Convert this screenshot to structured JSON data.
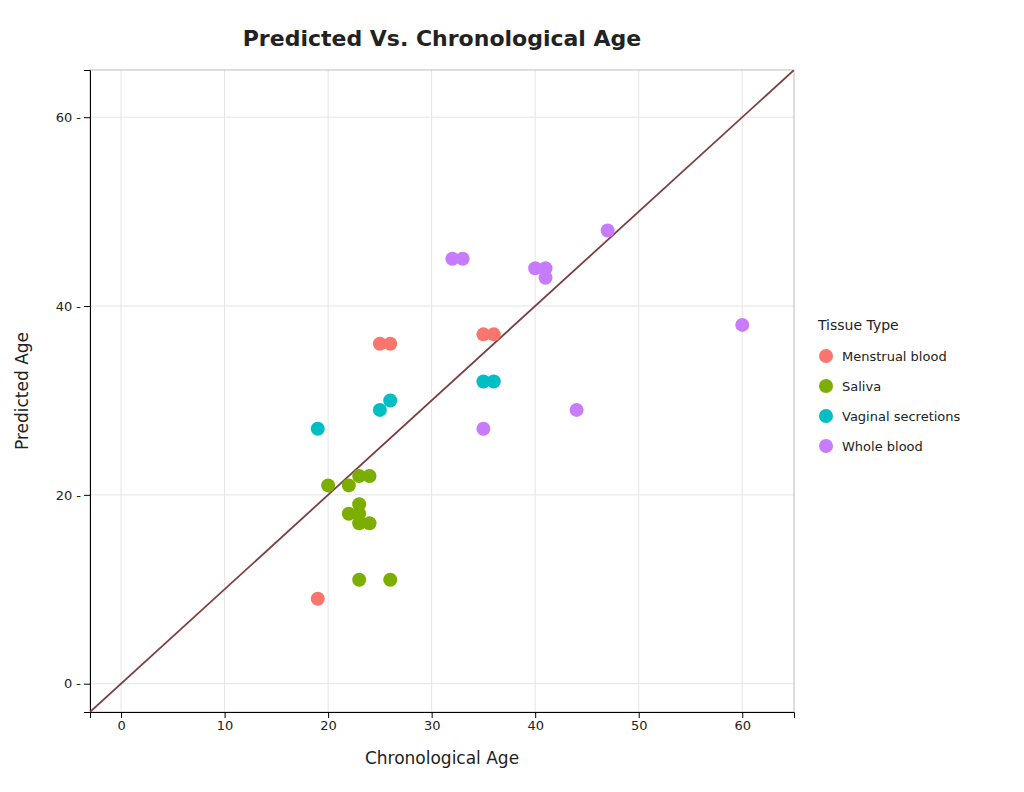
{
  "chart_data": {
    "type": "scatter",
    "title": "Predicted Vs. Chronological Age",
    "xlabel": "Chronological Age",
    "ylabel": "Predicted Age",
    "xlim": [
      -3,
      65
    ],
    "ylim": [
      -3,
      65
    ],
    "xticks": [
      0,
      10,
      20,
      30,
      40,
      50,
      60
    ],
    "yticks": [
      {
        "value": 0,
        "label": "0 -"
      },
      {
        "value": 20,
        "label": "20 -"
      },
      {
        "value": 40,
        "label": "40 -"
      },
      {
        "value": 60,
        "label": "60 -"
      }
    ],
    "grid": true,
    "legend": "right",
    "legend_title": "Tissue Type",
    "reference_line": {
      "x": [
        -10,
        70
      ],
      "y": [
        -10,
        70
      ],
      "color": "#7b3f3f"
    },
    "series": [
      {
        "name": "Menstrual blood",
        "color": "#f8766d",
        "x": [
          19,
          25,
          26,
          35,
          36
        ],
        "values": [
          9,
          36,
          36,
          37,
          37
        ]
      },
      {
        "name": "Saliva",
        "color": "#7cae00",
        "x": [
          20,
          22,
          23,
          24,
          22,
          23,
          23,
          23,
          24,
          23,
          26
        ],
        "values": [
          21,
          21,
          22,
          22,
          18,
          18,
          17,
          19,
          17,
          11,
          11
        ]
      },
      {
        "name": "Vaginal secretions",
        "color": "#00bfc4",
        "x": [
          19,
          25,
          26,
          35,
          36
        ],
        "values": [
          27,
          29,
          30,
          32,
          32
        ]
      },
      {
        "name": "Whole blood",
        "color": "#c77cff",
        "x": [
          32,
          33,
          40,
          41,
          41,
          47,
          35,
          44,
          60
        ],
        "values": [
          45,
          45,
          44,
          44,
          43,
          48,
          27,
          29,
          38
        ]
      }
    ]
  }
}
